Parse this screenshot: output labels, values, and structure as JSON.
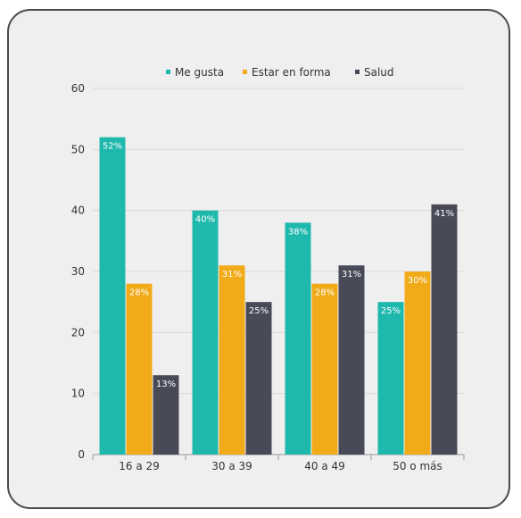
{
  "chart_data": {
    "type": "bar",
    "title": "",
    "xlabel": "",
    "ylabel": "",
    "ylim": [
      0,
      60
    ],
    "yticks": [
      "0",
      "10",
      "20",
      "30",
      "40",
      "50",
      "60"
    ],
    "categories": [
      "16 a 29",
      "30 a 39",
      "40 a 49",
      "50 o más"
    ],
    "series": [
      {
        "name": "Me gusta",
        "color": "#1fb8ac",
        "values": [
          52,
          40,
          38,
          25
        ],
        "labels": [
          "52%",
          "40%",
          "38%",
          "25%"
        ]
      },
      {
        "name": "Estar en forma",
        "color": "#f1ab19",
        "values": [
          28,
          31,
          28,
          30
        ],
        "labels": [
          "28%",
          "31%",
          "28%",
          "30%"
        ]
      },
      {
        "name": "Salud",
        "color": "#484a57",
        "values": [
          13,
          25,
          31,
          41
        ],
        "labels": [
          "13%",
          "25%",
          "31%",
          "41%"
        ]
      }
    ],
    "grid": true,
    "legend_position": "top"
  }
}
